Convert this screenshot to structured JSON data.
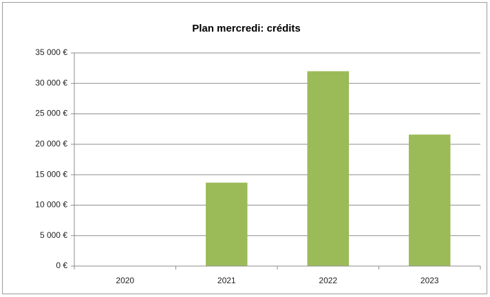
{
  "chart_data": {
    "type": "bar",
    "title": "Plan mercredi: crédits",
    "categories": [
      "2020",
      "2021",
      "2022",
      "2023"
    ],
    "values": [
      0,
      13700,
      32000,
      21600
    ],
    "color": "#9bbb59",
    "ylim": [
      0,
      35000
    ],
    "yticks": [
      {
        "value": 0,
        "label": "0 €"
      },
      {
        "value": 5000,
        "label": "5 000 €"
      },
      {
        "value": 10000,
        "label": "10 000 €"
      },
      {
        "value": 15000,
        "label": "15 000 €"
      },
      {
        "value": 20000,
        "label": "20 000 €"
      },
      {
        "value": 25000,
        "label": "25 000 €"
      },
      {
        "value": 30000,
        "label": "30 000 €"
      },
      {
        "value": 35000,
        "label": "35 000 €"
      }
    ],
    "grid": true
  }
}
